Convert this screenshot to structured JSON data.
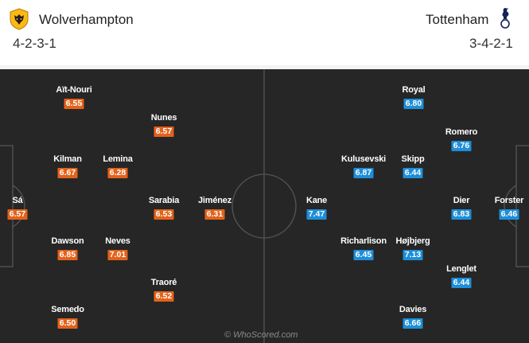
{
  "home": {
    "name": "Wolverhampton",
    "formation": "4-2-3-1",
    "crest_icon": "wolves-crest-icon",
    "rating_color": "#e3621b"
  },
  "away": {
    "name": "Tottenham",
    "formation": "3-4-2-1",
    "crest_icon": "spurs-cockerel-icon",
    "rating_color": "#1e8ed8"
  },
  "pitch": {
    "background": "#262626",
    "credit": "© WhoScored.com"
  },
  "home_players": [
    {
      "name": "Aït-Nouri",
      "rating": "6.55"
    },
    {
      "name": "Nunes",
      "rating": "6.57"
    },
    {
      "name": "Kilman",
      "rating": "6.67"
    },
    {
      "name": "Lemina",
      "rating": "6.28"
    },
    {
      "name": "Sá",
      "rating": "6.57"
    },
    {
      "name": "Sarabia",
      "rating": "6.53"
    },
    {
      "name": "Jiménez",
      "rating": "6.31"
    },
    {
      "name": "Dawson",
      "rating": "6.85"
    },
    {
      "name": "Neves",
      "rating": "7.01"
    },
    {
      "name": "Traoré",
      "rating": "6.52"
    },
    {
      "name": "Semedo",
      "rating": "6.50"
    }
  ],
  "away_players": [
    {
      "name": "Royal",
      "rating": "6.80"
    },
    {
      "name": "Romero",
      "rating": "6.76"
    },
    {
      "name": "Kulusevski",
      "rating": "6.87"
    },
    {
      "name": "Skipp",
      "rating": "6.44"
    },
    {
      "name": "Kane",
      "rating": "7.47"
    },
    {
      "name": "Dier",
      "rating": "6.83"
    },
    {
      "name": "Forster",
      "rating": "6.46"
    },
    {
      "name": "Richarlison",
      "rating": "6.45"
    },
    {
      "name": "Højbjerg",
      "rating": "7.13"
    },
    {
      "name": "Lenglet",
      "rating": "6.44"
    },
    {
      "name": "Davies",
      "rating": "6.66"
    }
  ]
}
